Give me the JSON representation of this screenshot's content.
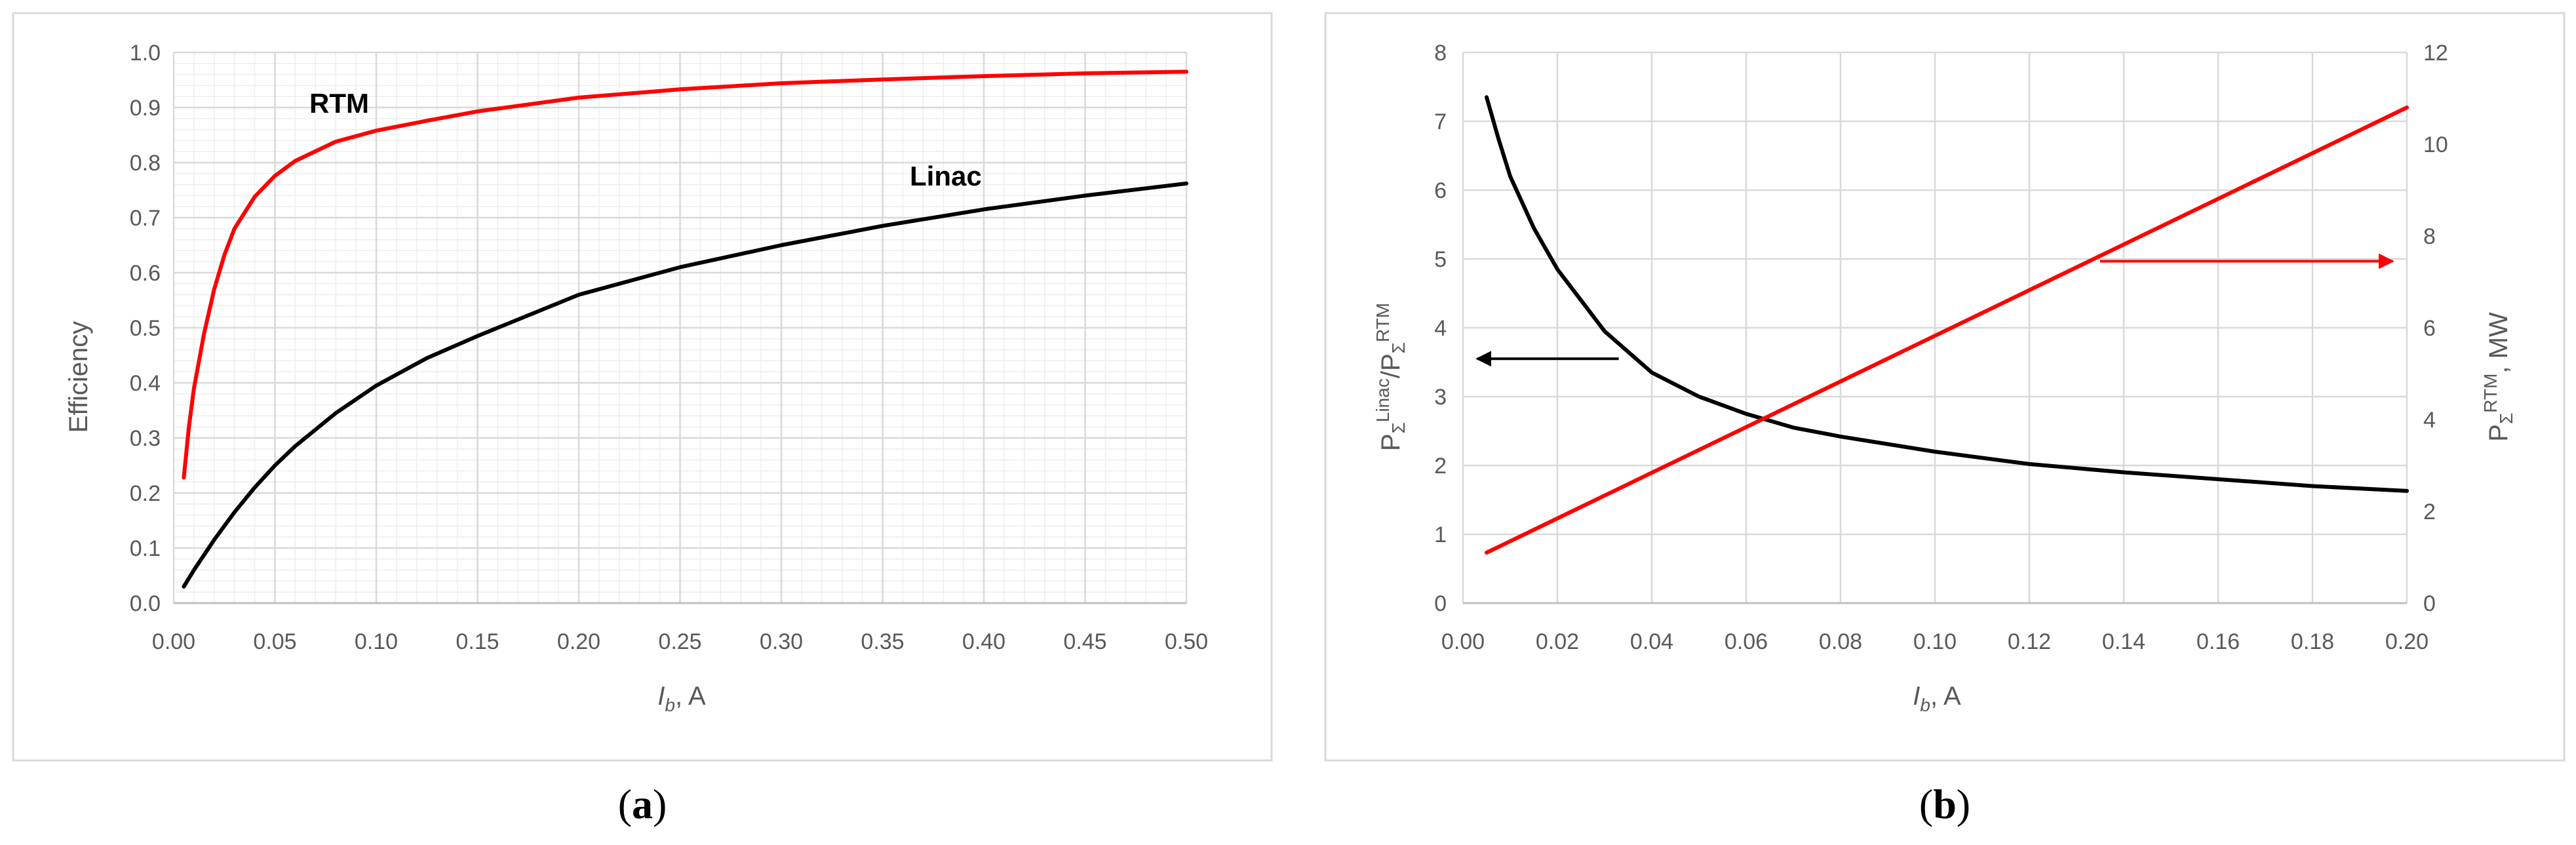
{
  "colors": {
    "red": "#ff0000",
    "black": "#000000",
    "grid_major": "#d9d9d9",
    "grid_minor": "#eeeeee",
    "frame": "#d9d9d9",
    "tick_text": "#595959"
  },
  "panel_labels": {
    "a": {
      "open": "(",
      "letter": "a",
      "close": ")"
    },
    "b": {
      "open": "(",
      "letter": "b",
      "close": ")"
    }
  },
  "chart_data": [
    {
      "id": "a",
      "type": "line",
      "xlabel": {
        "symbol": "I",
        "sub": "b",
        "rest": ", A"
      },
      "ylabel": "Efficiency",
      "xlim": [
        0.0,
        0.5
      ],
      "ylim": [
        0.0,
        1.0
      ],
      "xticks": [
        "0.00",
        "0.05",
        "0.10",
        "0.15",
        "0.20",
        "0.25",
        "0.30",
        "0.35",
        "0.40",
        "0.45",
        "0.50"
      ],
      "yticks": [
        "0.0",
        "0.1",
        "0.2",
        "0.3",
        "0.4",
        "0.5",
        "0.6",
        "0.7",
        "0.8",
        "0.9",
        "1.0"
      ],
      "grid": true,
      "minor_grid": true,
      "series": [
        {
          "name": "RTM",
          "color": "#ff0000",
          "x": [
            0.005,
            0.0075,
            0.01,
            0.015,
            0.02,
            0.025,
            0.03,
            0.04,
            0.05,
            0.06,
            0.08,
            0.1,
            0.125,
            0.15,
            0.2,
            0.25,
            0.3,
            0.35,
            0.4,
            0.45,
            0.5
          ],
          "y": [
            0.228,
            0.32,
            0.39,
            0.49,
            0.57,
            0.632,
            0.68,
            0.738,
            0.776,
            0.803,
            0.838,
            0.858,
            0.876,
            0.893,
            0.918,
            0.933,
            0.944,
            0.951,
            0.957,
            0.962,
            0.965
          ]
        },
        {
          "name": "Linac",
          "color": "#000000",
          "x": [
            0.005,
            0.01,
            0.02,
            0.03,
            0.04,
            0.05,
            0.06,
            0.08,
            0.1,
            0.125,
            0.15,
            0.2,
            0.25,
            0.3,
            0.35,
            0.4,
            0.45,
            0.5
          ],
          "y": [
            0.03,
            0.06,
            0.115,
            0.165,
            0.21,
            0.25,
            0.285,
            0.345,
            0.395,
            0.445,
            0.485,
            0.56,
            0.61,
            0.65,
            0.685,
            0.715,
            0.74,
            0.762
          ]
        }
      ]
    },
    {
      "id": "b",
      "type": "line",
      "xlabel": {
        "symbol": "I",
        "sub": "b",
        "rest": ", A"
      },
      "ylabel_left": {
        "p1": "P",
        "s1": "Σ",
        "sup1": "Linac",
        "slash": "/",
        "p2": "P",
        "s2": "Σ",
        "sup2": "RTM"
      },
      "ylabel_right": {
        "p": "P",
        "s": "Σ",
        "sup": "RTM",
        "rest": ", MW"
      },
      "xlim": [
        0.0,
        0.2
      ],
      "ylim_left": [
        0,
        8
      ],
      "ylim_right": [
        0,
        12
      ],
      "xticks": [
        "0.00",
        "0.02",
        "0.04",
        "0.06",
        "0.08",
        "0.10",
        "0.12",
        "0.14",
        "0.16",
        "0.18",
        "0.20"
      ],
      "yticks_left": [
        "0",
        "1",
        "2",
        "3",
        "4",
        "5",
        "6",
        "7",
        "8"
      ],
      "yticks_right": [
        "0",
        "2",
        "4",
        "6",
        "8",
        "10",
        "12"
      ],
      "grid": true,
      "series": [
        {
          "name": "",
          "axis": "left",
          "color": "#000000",
          "x": [
            0.005,
            0.0075,
            0.01,
            0.015,
            0.02,
            0.025,
            0.03,
            0.04,
            0.05,
            0.06,
            0.07,
            0.08,
            0.1,
            0.12,
            0.14,
            0.16,
            0.18,
            0.2
          ],
          "y": [
            7.35,
            6.75,
            6.2,
            5.45,
            4.85,
            4.4,
            3.95,
            3.35,
            3.0,
            2.75,
            2.55,
            2.42,
            2.2,
            2.02,
            1.9,
            1.8,
            1.7,
            1.63
          ]
        },
        {
          "name": "",
          "axis": "right",
          "color": "#ff0000",
          "x": [
            0.005,
            0.2
          ],
          "y": [
            1.1,
            10.8
          ]
        }
      ],
      "annotations": [
        {
          "name": "left-axis-arrow",
          "color": "#000000",
          "axis": "left",
          "from": [
            0.033,
            3.55
          ],
          "to": [
            0.003,
            3.55
          ]
        },
        {
          "name": "right-axis-arrow",
          "color": "#ff0000",
          "axis": "right",
          "from": [
            0.135,
            7.45
          ],
          "to": [
            0.197,
            7.45
          ]
        }
      ]
    }
  ]
}
